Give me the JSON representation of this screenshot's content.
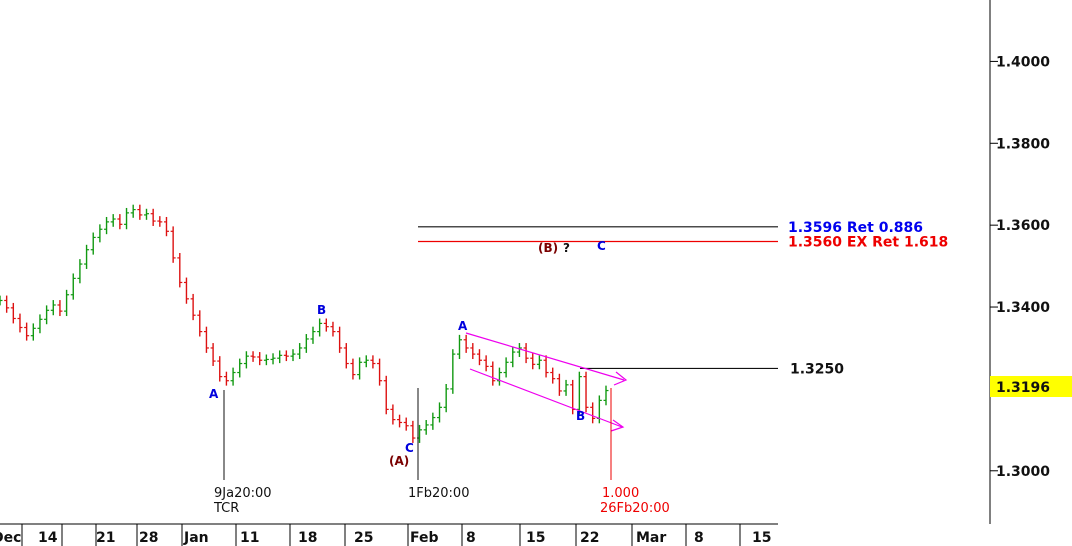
{
  "chart_data": {
    "type": "line",
    "x_axis_labels": [
      "Dec",
      "14",
      "21",
      "28",
      "Jan",
      "11",
      "18",
      "25",
      "Feb",
      "8",
      "15",
      "22",
      "Mar",
      "8",
      "15"
    ],
    "y_axis_ticks": [
      "1.4000",
      "1.3800",
      "1.3600",
      "1.3400",
      "1.3000"
    ],
    "ylim": [
      1.287,
      1.415
    ],
    "current_price": {
      "value": 1.3196,
      "label": "1.3196",
      "color": "#ffff00"
    },
    "levels": [
      {
        "name": "ret-0886",
        "value": 1.3596,
        "label": "1.3596 Ret 0.886",
        "color": "#0000ee"
      },
      {
        "name": "ex-ret-1618",
        "value": 1.356,
        "label": "1.3560 EX Ret 1.618",
        "color": "#ee0000"
      },
      {
        "name": "level-13250",
        "value": 1.325,
        "label": "1.3250",
        "color": "#111111"
      }
    ],
    "wave_labels": [
      {
        "text": "A",
        "color": "#0000dd"
      },
      {
        "text": "B",
        "color": "#0000dd"
      },
      {
        "text": "C",
        "color": "#0000dd"
      },
      {
        "text": "(A)",
        "color": "#7a0000"
      },
      {
        "text": "A",
        "color": "#0000dd"
      },
      {
        "text": "B",
        "color": "#0000dd"
      },
      {
        "text": "(B)",
        "color": "#7a0000"
      },
      {
        "text": "?",
        "color": "#111111"
      },
      {
        "text": "C",
        "color": "#0000dd"
      }
    ],
    "time_markers": [
      {
        "name": "jan9",
        "lines": [
          "9Ja20:00",
          "TCR"
        ],
        "color": "#111111"
      },
      {
        "name": "feb1",
        "lines": [
          "1Fb20:00"
        ],
        "color": "#111111"
      },
      {
        "name": "feb26",
        "lines": [
          "1.000",
          "26Fb20:00"
        ],
        "color": "#ee0000"
      }
    ],
    "price_series": [
      1.3416,
      1.3398,
      1.3372,
      1.335,
      1.333,
      1.3348,
      1.337,
      1.3392,
      1.3405,
      1.339,
      1.343,
      1.347,
      1.3505,
      1.354,
      1.357,
      1.359,
      1.3608,
      1.3615,
      1.3602,
      1.363,
      1.3638,
      1.3625,
      1.3628,
      1.361,
      1.3608,
      1.3585,
      1.352,
      1.346,
      1.342,
      1.338,
      1.334,
      1.33,
      1.3268,
      1.323,
      1.322,
      1.324,
      1.3262,
      1.328,
      1.3278,
      1.327,
      1.3272,
      1.3275,
      1.3282,
      1.328,
      1.3285,
      1.33,
      1.3322,
      1.334,
      1.336,
      1.3352,
      1.334,
      1.33,
      1.3262,
      1.3235,
      1.3265,
      1.327,
      1.3262,
      1.322,
      1.315,
      1.3125,
      1.3118,
      1.311,
      1.308,
      1.31,
      1.3112,
      1.313,
      1.3155,
      1.32,
      1.3285,
      1.332,
      1.33,
      1.3285,
      1.327,
      1.3255,
      1.322,
      1.324,
      1.3265,
      1.329,
      1.33,
      1.3275,
      1.326,
      1.327,
      1.324,
      1.3225,
      1.3195,
      1.321,
      1.315,
      1.323,
      1.3155,
      1.3128,
      1.3172,
      1.3196
    ]
  }
}
